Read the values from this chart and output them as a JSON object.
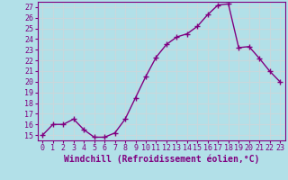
{
  "x": [
    0,
    1,
    2,
    3,
    4,
    5,
    6,
    7,
    8,
    9,
    10,
    11,
    12,
    13,
    14,
    15,
    16,
    17,
    18,
    19,
    20,
    21,
    22,
    23
  ],
  "y": [
    15,
    16,
    16,
    16.5,
    15.5,
    14.8,
    14.8,
    15.2,
    16.5,
    18.5,
    20.5,
    22.3,
    23.5,
    24.2,
    24.5,
    25.2,
    26.3,
    27.2,
    27.3,
    23.2,
    23.3,
    22.2,
    21.0,
    20.0
  ],
  "line_color": "#800080",
  "marker": "+",
  "marker_size": 4,
  "bg_color": "#b2e0e8",
  "grid_color": "#c8d8dc",
  "xlabel": "Windchill (Refroidissement éolien,°C)",
  "ylim": [
    14.5,
    27.5
  ],
  "xlim": [
    -0.5,
    23.5
  ],
  "yticks": [
    15,
    16,
    17,
    18,
    19,
    20,
    21,
    22,
    23,
    24,
    25,
    26,
    27
  ],
  "xticks": [
    0,
    1,
    2,
    3,
    4,
    5,
    6,
    7,
    8,
    9,
    10,
    11,
    12,
    13,
    14,
    15,
    16,
    17,
    18,
    19,
    20,
    21,
    22,
    23
  ],
  "xlabel_fontsize": 7,
  "tick_fontsize": 6,
  "line_width": 1.0,
  "marker_color": "#800080"
}
